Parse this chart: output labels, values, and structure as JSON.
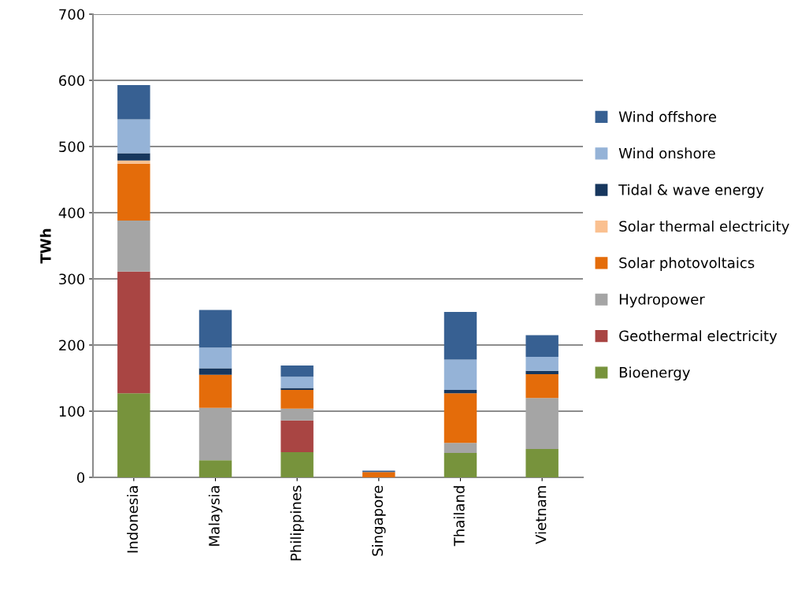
{
  "chart_data": {
    "type": "bar",
    "stacked": true,
    "ylabel": "TWh",
    "categories": [
      "Indonesia",
      "Malaysia",
      "Philippines",
      "Singapore",
      "Thailand",
      "Vietnam"
    ],
    "series": [
      {
        "name": "Bioenergy",
        "color": "#77933c",
        "values": [
          127,
          26,
          38,
          0,
          37,
          43
        ]
      },
      {
        "name": "Geothermal electricity",
        "color": "#a94543",
        "values": [
          184,
          0,
          48,
          0,
          0,
          0
        ]
      },
      {
        "name": "Hydropower",
        "color": "#a5a5a5",
        "values": [
          77,
          79,
          18,
          0,
          15,
          77
        ]
      },
      {
        "name": "Solar photovoltaics",
        "color": "#e46c0a",
        "values": [
          86,
          50,
          28,
          8,
          75,
          36
        ]
      },
      {
        "name": "Solar thermal electricity",
        "color": "#fac090",
        "values": [
          5,
          0,
          0,
          0,
          0,
          0
        ]
      },
      {
        "name": "Tidal & wave energy",
        "color": "#17375e",
        "values": [
          11,
          10,
          3,
          0,
          5,
          5
        ]
      },
      {
        "name": "Wind onshore",
        "color": "#95b3d7",
        "values": [
          51,
          31,
          17,
          0,
          46,
          21
        ]
      },
      {
        "name": "Wind offshore",
        "color": "#376092",
        "values": [
          52,
          57,
          17,
          2,
          72,
          33
        ]
      }
    ],
    "ylim": [
      0,
      700
    ],
    "yticks": [
      0,
      100,
      200,
      300,
      400,
      500,
      600,
      700
    ],
    "grid": "y",
    "legend": "right"
  }
}
